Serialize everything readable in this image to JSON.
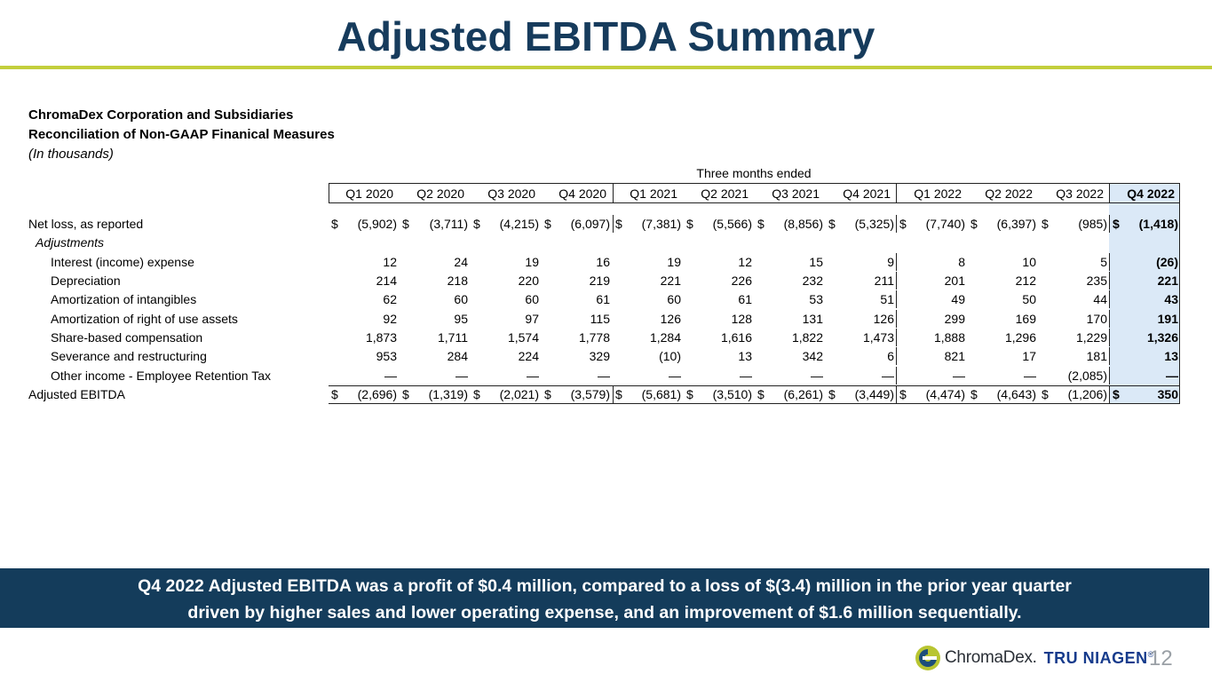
{
  "title": "Adjusted EBITDA Summary",
  "company": "ChromaDex Corporation and Subsidiaries",
  "subtitle": "Reconciliation of Non-GAAP Finanical Measures",
  "units": "(In thousands)",
  "period_header": "Three months ended",
  "columns": [
    "Q1 2020",
    "Q2 2020",
    "Q3 2020",
    "Q4 2020",
    "Q1 2021",
    "Q2 2021",
    "Q3 2021",
    "Q4 2021",
    "Q1 2022",
    "Q2 2022",
    "Q3 2022",
    "Q4 2022"
  ],
  "rows": [
    {
      "label": "Net loss, as reported",
      "dollar": "$",
      "values": [
        "(5,902)",
        "(3,711)",
        "(4,215)",
        "(6,097)",
        "(7,381)",
        "(5,566)",
        "(8,856)",
        "(5,325)",
        "(7,740)",
        "(6,397)",
        "(985)",
        "(1,418)"
      ]
    },
    {
      "label": "Adjustments",
      "italic": true
    },
    {
      "label": "Interest (income) expense",
      "values": [
        "12",
        "24",
        "19",
        "16",
        "19",
        "12",
        "15",
        "9",
        "8",
        "10",
        "5",
        "(26)"
      ]
    },
    {
      "label": "Depreciation",
      "values": [
        "214",
        "218",
        "220",
        "219",
        "221",
        "226",
        "232",
        "211",
        "201",
        "212",
        "235",
        "221"
      ]
    },
    {
      "label": "Amortization of intangibles",
      "values": [
        "62",
        "60",
        "60",
        "61",
        "60",
        "61",
        "53",
        "51",
        "49",
        "50",
        "44",
        "43"
      ]
    },
    {
      "label": "Amortization of right of use assets",
      "values": [
        "92",
        "95",
        "97",
        "115",
        "126",
        "128",
        "131",
        "126",
        "299",
        "169",
        "170",
        "191"
      ]
    },
    {
      "label": "Share-based compensation",
      "values": [
        "1,873",
        "1,711",
        "1,574",
        "1,778",
        "1,284",
        "1,616",
        "1,822",
        "1,473",
        "1,888",
        "1,296",
        "1,229",
        "1,326"
      ]
    },
    {
      "label": "Severance and restructuring",
      "values": [
        "953",
        "284",
        "224",
        "329",
        "(10)",
        "13",
        "342",
        "6",
        "821",
        "17",
        "181",
        "13"
      ]
    },
    {
      "label": "Other income - Employee Retention Tax",
      "values": [
        "—",
        "—",
        "—",
        "—",
        "—",
        "—",
        "—",
        "—",
        "—",
        "—",
        "(2,085)",
        "—"
      ]
    },
    {
      "label": "Adjusted EBITDA",
      "dollar": "$",
      "values": [
        "(2,696)",
        "(1,319)",
        "(2,021)",
        "(3,579)",
        "(5,681)",
        "(3,510)",
        "(6,261)",
        "(3,449)",
        "(4,474)",
        "(4,643)",
        "(1,206)",
        "350"
      ]
    }
  ],
  "banner": {
    "line1": "Q4 2022 Adjusted EBITDA was a profit of $0.4 million, compared to a loss of $(3.4) million in the prior year quarter",
    "line2": "driven by higher sales and lower operating expense, and an improvement of $1.6 million sequentially."
  },
  "logo": {
    "brand": "ChromaDex.",
    "product": "TRU NIAGEN",
    "mark": "®"
  },
  "page_number": "12",
  "colors": {
    "navy": "#163b5c",
    "rule": "#c3cf3c",
    "highlight": "#dbe9f7",
    "banner": "#143c5b"
  }
}
